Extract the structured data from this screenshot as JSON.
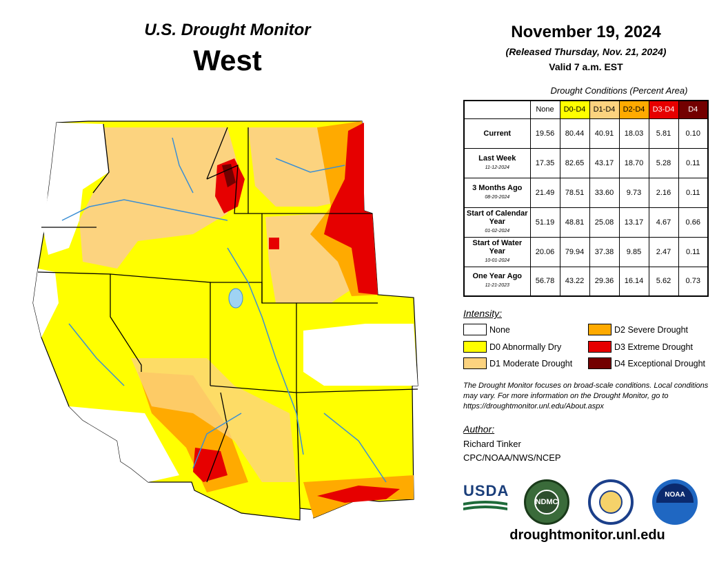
{
  "header": {
    "product": "U.S. Drought Monitor",
    "region": "West",
    "date": "November 19, 2024",
    "released": "(Released Thursday, Nov. 21, 2024)",
    "valid": "Valid 7 a.m. EST"
  },
  "table": {
    "caption": "Drought Conditions (Percent Area)",
    "columns": [
      "None",
      "D0-D4",
      "D1-D4",
      "D2-D4",
      "D3-D4",
      "D4"
    ],
    "column_colors": [
      "#ffffff",
      "#ffff00",
      "#fcd37f",
      "#ffaa00",
      "#e60000",
      "#730000"
    ],
    "rows": [
      {
        "label": "Current",
        "date": "",
        "values": [
          "19.56",
          "80.44",
          "40.91",
          "18.03",
          "5.81",
          "0.10"
        ]
      },
      {
        "label": "Last Week",
        "date": "11-12-2024",
        "values": [
          "17.35",
          "82.65",
          "43.17",
          "18.70",
          "5.28",
          "0.11"
        ]
      },
      {
        "label": "3 Months Ago",
        "date": "08-20-2024",
        "values": [
          "21.49",
          "78.51",
          "33.60",
          "9.73",
          "2.16",
          "0.11"
        ]
      },
      {
        "label": "Start of Calendar Year",
        "date": "01-02-2024",
        "values": [
          "51.19",
          "48.81",
          "25.08",
          "13.17",
          "4.67",
          "0.66"
        ]
      },
      {
        "label": "Start of Water Year",
        "date": "10-01-2024",
        "values": [
          "20.06",
          "79.94",
          "37.38",
          "9.85",
          "2.47",
          "0.11"
        ]
      },
      {
        "label": "One Year Ago",
        "date": "11-21-2023",
        "values": [
          "56.78",
          "43.22",
          "29.36",
          "16.14",
          "5.62",
          "0.73"
        ]
      }
    ]
  },
  "legend": {
    "title": "Intensity:",
    "items": [
      {
        "label": "None",
        "color": "#ffffff"
      },
      {
        "label": "D0 Abnormally Dry",
        "color": "#ffff00"
      },
      {
        "label": "D1 Moderate Drought",
        "color": "#fcd37f"
      },
      {
        "label": "D2 Severe Drought",
        "color": "#ffaa00"
      },
      {
        "label": "D3 Extreme Drought",
        "color": "#e60000"
      },
      {
        "label": "D4 Exceptional Drought",
        "color": "#730000"
      }
    ]
  },
  "note": "The Drought Monitor focuses on broad-scale conditions. Local conditions may vary. For more information on the Drought Monitor, go to https://droughtmonitor.unl.edu/About.aspx",
  "author": {
    "title": "Author:",
    "name": "Richard Tinker",
    "org": "CPC/NOAA/NWS/NCEP"
  },
  "logos": {
    "usda": "USDA",
    "ndmc": "NDMC",
    "noaa": "NOAA"
  },
  "footer_url": "droughtmonitor.unl.edu"
}
